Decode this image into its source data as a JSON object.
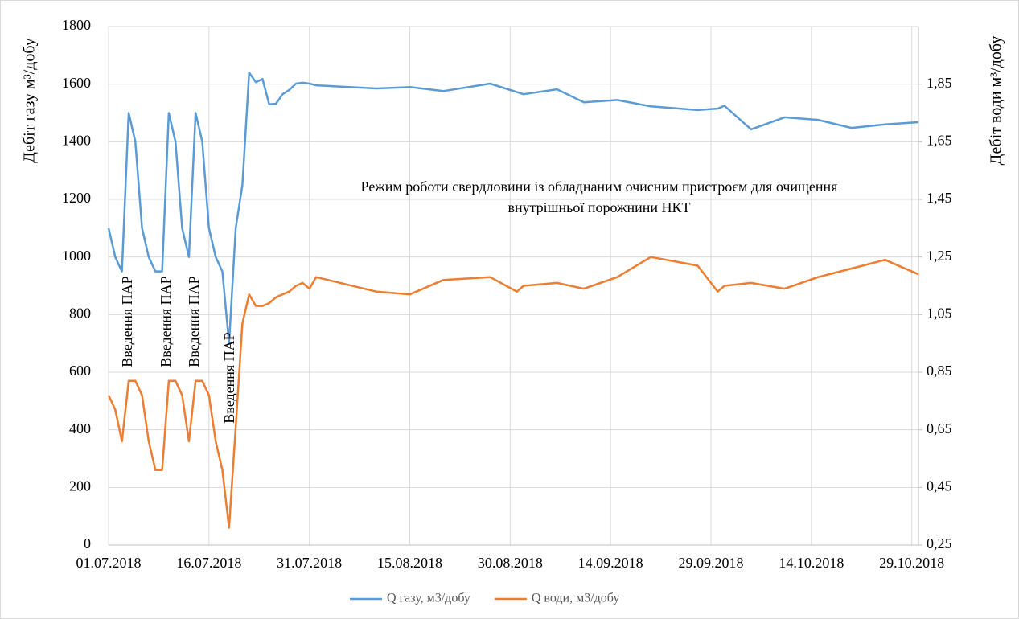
{
  "chart_data": {
    "type": "line",
    "ylabel": "Дебіт газу м³/добу",
    "y2label": "Дебіт води м³/добу",
    "xlim": [
      "2018-07-01",
      "2018-10-30"
    ],
    "xticks": [
      {
        "value": "2018-07-01",
        "label": "01.07.2018"
      },
      {
        "value": "2018-07-16",
        "label": "16.07.2018"
      },
      {
        "value": "2018-07-31",
        "label": "31.07.2018"
      },
      {
        "value": "2018-08-15",
        "label": "15.08.2018"
      },
      {
        "value": "2018-08-30",
        "label": "30.08.2018"
      },
      {
        "value": "2018-09-14",
        "label": "14.09.2018"
      },
      {
        "value": "2018-09-29",
        "label": "29.09.2018"
      },
      {
        "value": "2018-10-14",
        "label": "14.10.2018"
      },
      {
        "value": "2018-10-29",
        "label": "29.10.2018"
      }
    ],
    "ylim": [
      0,
      1800
    ],
    "yticks": [
      0,
      200,
      400,
      600,
      800,
      1000,
      1200,
      1400,
      1600,
      1800
    ],
    "y2lim": [
      0.25,
      2.05
    ],
    "y2ticks": [
      {
        "value": 0.25,
        "label": "0,25"
      },
      {
        "value": 0.45,
        "label": "0,45"
      },
      {
        "value": 0.65,
        "label": "0,65"
      },
      {
        "value": 0.85,
        "label": "0,85"
      },
      {
        "value": 1.05,
        "label": "1,05"
      },
      {
        "value": 1.25,
        "label": "1,25"
      },
      {
        "value": 1.45,
        "label": "1,45"
      },
      {
        "value": 1.65,
        "label": "1,65"
      },
      {
        "value": 1.85,
        "label": "1,85"
      }
    ],
    "grid": true,
    "legend": "bottom",
    "annotations": [
      "Введення ПАР",
      "Введення ПАР",
      "Введення ПАР",
      "Введення ПАР",
      "Режим роботи свердловини із обладнаним очисним пристроєм для очищення",
      "внутрішньої порожнини НКТ"
    ],
    "series": [
      {
        "name": "Q газу, м3/добу",
        "color": "#5b9bd5",
        "x": [
          "2018-07-01",
          "2018-07-02",
          "2018-07-03",
          "2018-07-04",
          "2018-07-05",
          "2018-07-06",
          "2018-07-07",
          "2018-07-08",
          "2018-07-09",
          "2018-07-10",
          "2018-07-11",
          "2018-07-12",
          "2018-07-13",
          "2018-07-14",
          "2018-07-15",
          "2018-07-16",
          "2018-07-17",
          "2018-07-18",
          "2018-07-19",
          "2018-07-20",
          "2018-07-21",
          "2018-07-22",
          "2018-07-23",
          "2018-07-24",
          "2018-07-25",
          "2018-07-26",
          "2018-07-27",
          "2018-07-28",
          "2018-07-29",
          "2018-07-30",
          "2018-07-31",
          "2018-08-01",
          "2018-08-10",
          "2018-08-15",
          "2018-08-20",
          "2018-08-27",
          "2018-09-01",
          "2018-09-06",
          "2018-09-10",
          "2018-09-15",
          "2018-09-20",
          "2018-09-27",
          "2018-09-30",
          "2018-10-01",
          "2018-10-05",
          "2018-10-10",
          "2018-10-15",
          "2018-10-20",
          "2018-10-25",
          "2018-10-30"
        ],
        "values": [
          1100,
          1000,
          950,
          1500,
          1400,
          1100,
          1000,
          950,
          950,
          1500,
          1400,
          1100,
          1000,
          1500,
          1400,
          1100,
          1000,
          950,
          700,
          1100,
          1250,
          1640,
          1607,
          1618,
          1530,
          1532,
          1565,
          1580,
          1602,
          1605,
          1602,
          1596,
          1585,
          1590,
          1576,
          1602,
          1565,
          1582,
          1537,
          1545,
          1523,
          1510,
          1515,
          1525,
          1443,
          1485,
          1476,
          1448,
          1460,
          1468
        ]
      },
      {
        "name": "Q води, м3/добу",
        "color": "#ed7d31",
        "axis": "y2",
        "x": [
          "2018-07-01",
          "2018-07-02",
          "2018-07-03",
          "2018-07-04",
          "2018-07-05",
          "2018-07-06",
          "2018-07-07",
          "2018-07-08",
          "2018-07-09",
          "2018-07-10",
          "2018-07-11",
          "2018-07-12",
          "2018-07-13",
          "2018-07-14",
          "2018-07-15",
          "2018-07-16",
          "2018-07-17",
          "2018-07-18",
          "2018-07-19",
          "2018-07-20",
          "2018-07-21",
          "2018-07-22",
          "2018-07-23",
          "2018-07-24",
          "2018-07-25",
          "2018-07-26",
          "2018-07-27",
          "2018-07-28",
          "2018-07-29",
          "2018-07-30",
          "2018-07-31",
          "2018-08-01",
          "2018-08-10",
          "2018-08-15",
          "2018-08-20",
          "2018-08-27",
          "2018-08-31",
          "2018-09-01",
          "2018-09-06",
          "2018-09-10",
          "2018-09-15",
          "2018-09-20",
          "2018-09-27",
          "2018-09-30",
          "2018-10-01",
          "2018-10-05",
          "2018-10-10",
          "2018-10-15",
          "2018-10-20",
          "2018-10-25",
          "2018-10-30"
        ],
        "values": [
          0.77,
          0.72,
          0.61,
          0.82,
          0.82,
          0.77,
          0.61,
          0.51,
          0.51,
          0.82,
          0.82,
          0.77,
          0.61,
          0.82,
          0.82,
          0.77,
          0.61,
          0.51,
          0.31,
          0.66,
          1.02,
          1.12,
          1.08,
          1.08,
          1.09,
          1.11,
          1.12,
          1.13,
          1.15,
          1.16,
          1.14,
          1.18,
          1.13,
          1.12,
          1.17,
          1.18,
          1.13,
          1.15,
          1.16,
          1.14,
          1.18,
          1.25,
          1.22,
          1.13,
          1.15,
          1.16,
          1.14,
          1.18,
          1.21,
          1.24,
          1.19
        ]
      }
    ]
  }
}
